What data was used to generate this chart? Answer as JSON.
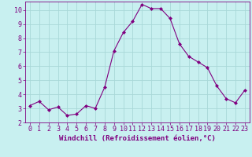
{
  "x": [
    0,
    1,
    2,
    3,
    4,
    5,
    6,
    7,
    8,
    9,
    10,
    11,
    12,
    13,
    14,
    15,
    16,
    17,
    18,
    19,
    20,
    21,
    22,
    23
  ],
  "y": [
    3.2,
    3.5,
    2.9,
    3.1,
    2.5,
    2.6,
    3.2,
    3.0,
    4.5,
    7.1,
    8.4,
    9.2,
    10.4,
    10.1,
    10.1,
    9.4,
    7.6,
    6.7,
    6.3,
    5.9,
    4.6,
    3.7,
    3.4,
    4.3
  ],
  "line_color": "#800080",
  "marker_color": "#800080",
  "bg_color": "#c8f0f0",
  "grid_color": "#a8d8d8",
  "xlabel": "Windchill (Refroidissement éolien,°C)",
  "ylim": [
    2,
    10.6
  ],
  "xlim": [
    -0.5,
    23.5
  ],
  "yticks": [
    2,
    3,
    4,
    5,
    6,
    7,
    8,
    9,
    10
  ],
  "xticks": [
    0,
    1,
    2,
    3,
    4,
    5,
    6,
    7,
    8,
    9,
    10,
    11,
    12,
    13,
    14,
    15,
    16,
    17,
    18,
    19,
    20,
    21,
    22,
    23
  ],
  "axis_color": "#800080",
  "tick_color": "#800080",
  "label_fontsize": 6.5,
  "tick_fontsize": 6.0
}
